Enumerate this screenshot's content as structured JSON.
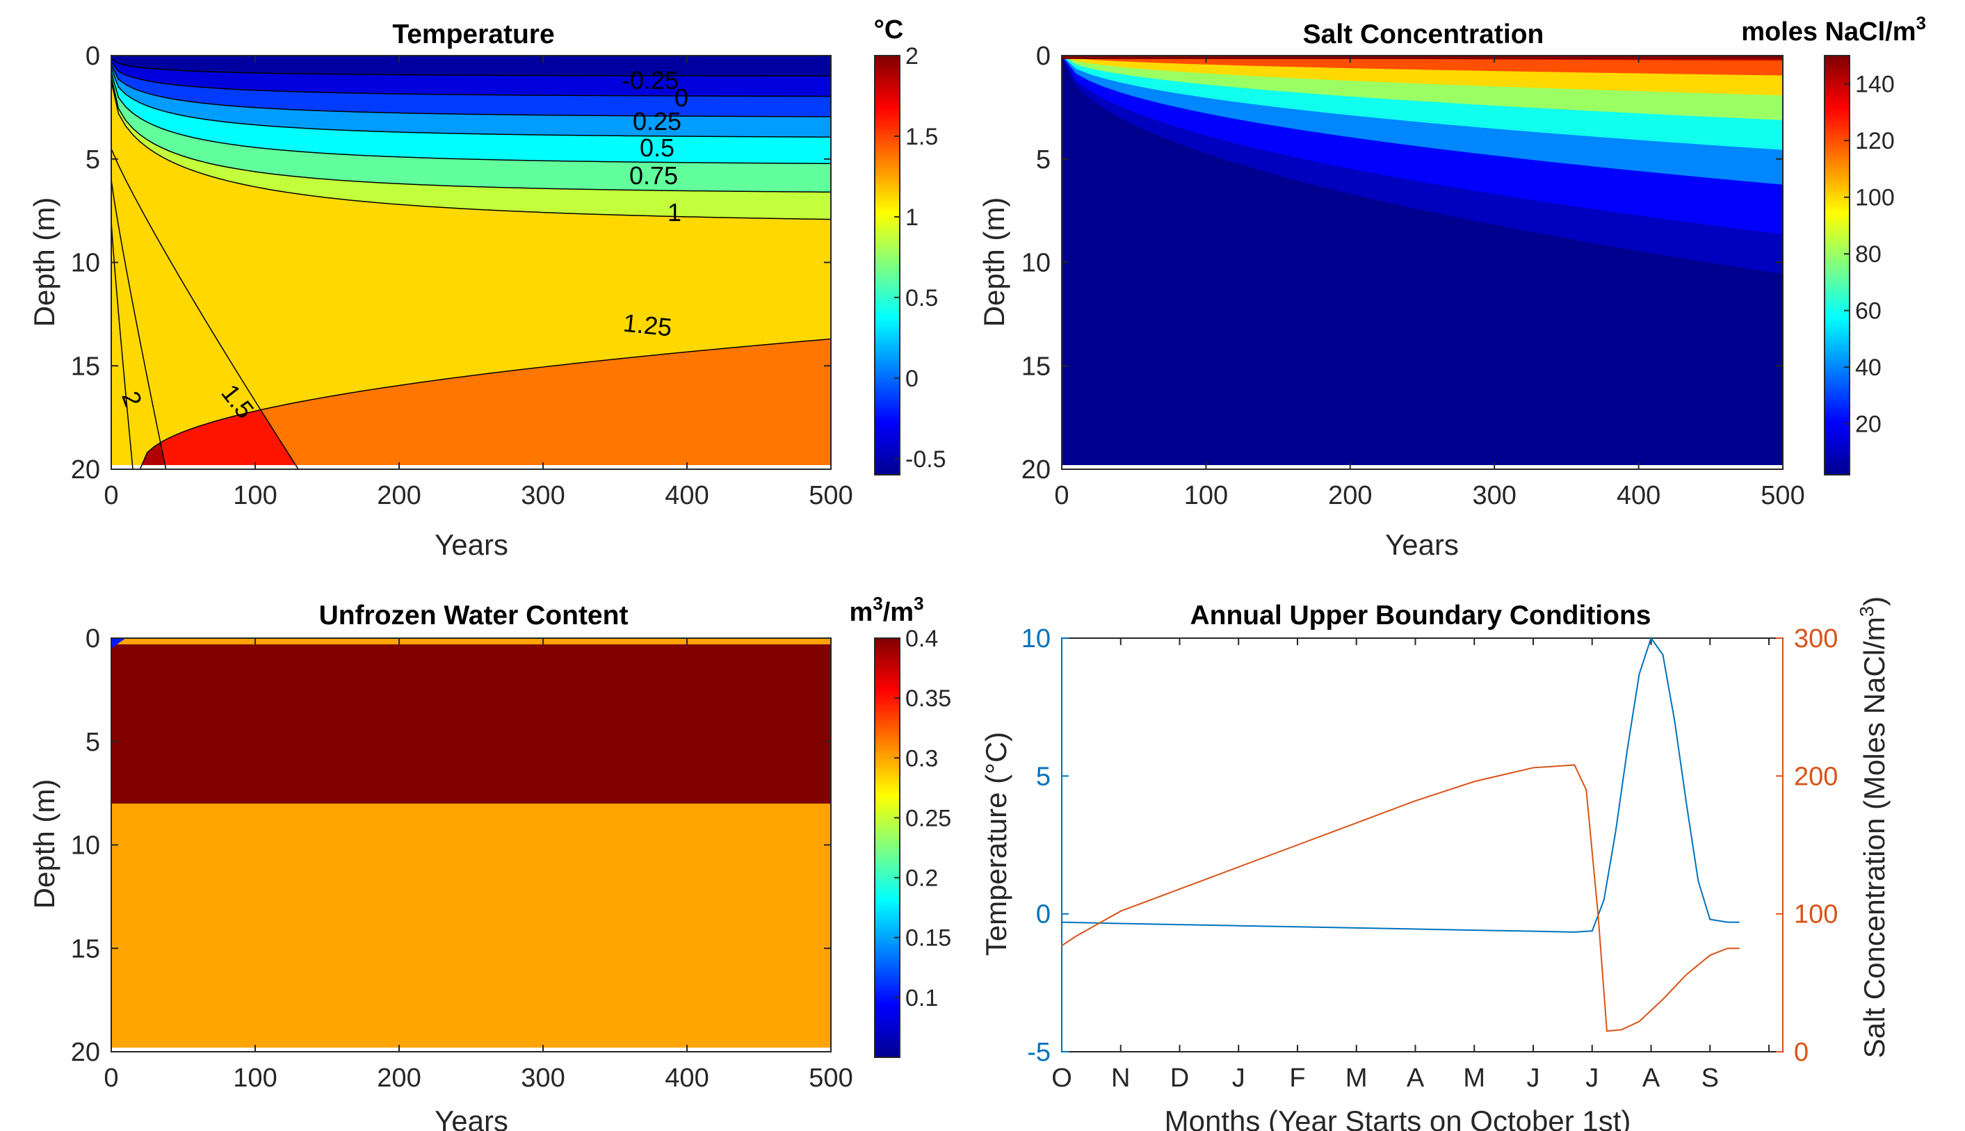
{
  "figure": {
    "panels": [
      "temperature",
      "salt",
      "water",
      "boundary"
    ]
  },
  "chart_data": [
    {
      "id": "temperature",
      "type": "heatmap",
      "title": "Temperature",
      "xlabel": "Years",
      "ylabel": "Depth (m)",
      "xlim": [
        0,
        500
      ],
      "ylim": [
        0,
        20
      ],
      "xticks": [
        "0",
        "100",
        "200",
        "300",
        "400",
        "500"
      ],
      "yticks": [
        "0",
        "5",
        "10",
        "15",
        "20"
      ],
      "colorbar": {
        "unit": "°C",
        "range": [
          -0.6,
          2.0
        ],
        "ticks": [
          "-0.5",
          "0",
          "0.5",
          "1",
          "1.5",
          "2"
        ]
      },
      "contour_levels": [
        -0.5,
        -0.25,
        0,
        0.25,
        0.5,
        0.75,
        1,
        1.25,
        1.5,
        1.75,
        2
      ],
      "contour_labels": [
        "-0.25",
        "0",
        "0.25",
        "0.5",
        "0.75",
        "1",
        "1.25",
        "1.5",
        "2"
      ],
      "contour_depths_at_500y": {
        "-0.5": 1.0,
        "-0.25": 2.0,
        "0": 3.0,
        "0.25": 4.0,
        "0.5": 5.3,
        "0.75": 6.7,
        "1": 8.2,
        "1.25": 13.7
      },
      "contour_1_5_x_at_bottom": 130,
      "contour_1_75_x_at_bottom": 38,
      "contour_2_x_at_bottom": 15
    },
    {
      "id": "salt",
      "type": "heatmap",
      "title": "Salt Concentration",
      "xlabel": "Years",
      "ylabel": "Depth (m)",
      "xlim": [
        0,
        500
      ],
      "ylim": [
        0,
        20
      ],
      "xticks": [
        "0",
        "100",
        "200",
        "300",
        "400",
        "500"
      ],
      "yticks": [
        "0",
        "5",
        "10",
        "15",
        "20"
      ],
      "colorbar": {
        "unit": "moles NaCl/m",
        "unit_sup": "3",
        "range": [
          2,
          150
        ],
        "ticks": [
          "20",
          "40",
          "60",
          "80",
          "100",
          "120",
          "140"
        ]
      },
      "surface_value": 150,
      "penetration_depth_at_500y": 12
    },
    {
      "id": "water",
      "type": "heatmap",
      "title": "Unfrozen Water Content",
      "xlabel": "Years",
      "ylabel": "Depth (m)",
      "xlim": [
        0,
        500
      ],
      "ylim": [
        0,
        20
      ],
      "xticks": [
        "0",
        "100",
        "200",
        "300",
        "400",
        "500"
      ],
      "yticks": [
        "0",
        "5",
        "10",
        "15",
        "20"
      ],
      "colorbar": {
        "unit": "m",
        "unit_sup": "3",
        "unit_mid": "/m",
        "unit_sup2": "3",
        "range": [
          0.05,
          0.4
        ],
        "ticks": [
          "0.1",
          "0.15",
          "0.2",
          "0.25",
          "0.3",
          "0.35",
          "0.4"
        ]
      },
      "layers": [
        {
          "from_depth": 0.3,
          "to_depth": 8,
          "value": 0.4
        },
        {
          "from_depth": 8,
          "to_depth": 20,
          "value": 0.3
        }
      ]
    },
    {
      "id": "boundary",
      "type": "line",
      "title": "Annual Upper Boundary Conditions",
      "xlabel": "Months (Year Starts on October 1st)",
      "ylabel_left": "Temperature (°C)",
      "ylabel_right": "Salt Concentration (Moles NaCl/m",
      "ylabel_right_sup": "3",
      "ylabel_right_close": ")",
      "categories": [
        "O",
        "N",
        "D",
        "J",
        "F",
        "M",
        "A",
        "M",
        "J",
        "J",
        "A",
        "S"
      ],
      "ylim_left": [
        -5,
        10
      ],
      "ylim_right": [
        0,
        300
      ],
      "yticks_left": [
        "-5",
        "0",
        "5",
        "10"
      ],
      "yticks_right": [
        "0",
        "100",
        "200",
        "300"
      ],
      "colors": {
        "left": "#0072BD",
        "right": "#D95319"
      },
      "series": [
        {
          "axis": "left",
          "x": [
            0,
            1,
            2,
            3,
            4,
            5,
            6,
            7,
            8,
            8.7,
            9.0,
            9.2,
            9.4,
            9.6,
            9.8,
            10.0,
            10.2,
            10.4,
            10.6,
            10.8,
            11.0,
            11.3,
            11.5
          ],
          "values": [
            -0.3,
            -0.35,
            -0.39,
            -0.43,
            -0.47,
            -0.51,
            -0.55,
            -0.59,
            -0.63,
            -0.66,
            -0.62,
            0.5,
            3.0,
            6.0,
            8.7,
            10.0,
            9.4,
            7.0,
            4.0,
            1.2,
            -0.2,
            -0.3,
            -0.3
          ]
        },
        {
          "axis": "right",
          "x": [
            0,
            0.25,
            0.5,
            1,
            2,
            3,
            4,
            5,
            6,
            7,
            8,
            8.7,
            8.9,
            9.1,
            9.25,
            9.5,
            9.8,
            10.2,
            10.6,
            11.0,
            11.3,
            11.5
          ],
          "values": [
            77,
            84,
            90,
            102,
            118,
            134,
            150,
            166,
            182,
            196,
            206,
            208,
            190,
            100,
            15,
            16,
            22,
            38,
            56,
            70,
            75,
            75
          ]
        }
      ]
    }
  ]
}
